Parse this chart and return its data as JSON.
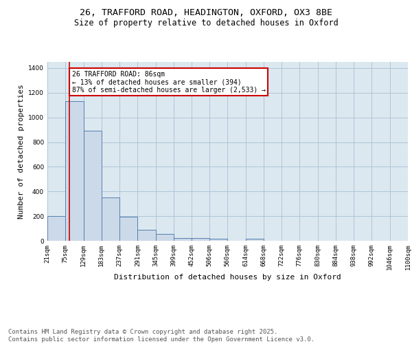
{
  "title_line1": "26, TRAFFORD ROAD, HEADINGTON, OXFORD, OX3 8BE",
  "title_line2": "Size of property relative to detached houses in Oxford",
  "xlabel": "Distribution of detached houses by size in Oxford",
  "ylabel": "Number of detached properties",
  "bin_edges": [
    21,
    75,
    129,
    183,
    237,
    291,
    345,
    399,
    452,
    506,
    560,
    614,
    668,
    722,
    776,
    830,
    884,
    938,
    992,
    1046,
    1100
  ],
  "bin_labels": [
    "21sqm",
    "75sqm",
    "129sqm",
    "183sqm",
    "237sqm",
    "291sqm",
    "345sqm",
    "399sqm",
    "452sqm",
    "506sqm",
    "560sqm",
    "614sqm",
    "668sqm",
    "722sqm",
    "776sqm",
    "830sqm",
    "884sqm",
    "938sqm",
    "992sqm",
    "1046sqm",
    "1100sqm"
  ],
  "counts": [
    200,
    1130,
    890,
    350,
    195,
    90,
    55,
    20,
    20,
    15,
    0,
    15,
    0,
    0,
    0,
    0,
    0,
    0,
    0,
    0
  ],
  "bar_facecolor": "#ccd9e8",
  "bar_edgecolor": "#5580b0",
  "grid_color": "#adc4d8",
  "background_color": "#dce8f0",
  "property_size": 86,
  "red_line_color": "#cc0000",
  "annotation_text": "26 TRAFFORD ROAD: 86sqm\n← 13% of detached houses are smaller (394)\n87% of semi-detached houses are larger (2,533) →",
  "annotation_box_color": "#cc0000",
  "ylim": [
    0,
    1450
  ],
  "yticks": [
    0,
    200,
    400,
    600,
    800,
    1000,
    1200,
    1400
  ],
  "footer_text": "Contains HM Land Registry data © Crown copyright and database right 2025.\nContains public sector information licensed under the Open Government Licence v3.0.",
  "title_fontsize": 9.5,
  "subtitle_fontsize": 8.5,
  "footer_fontsize": 6.5,
  "axis_label_fontsize": 8,
  "tick_fontsize": 6.5,
  "annotation_fontsize": 7
}
